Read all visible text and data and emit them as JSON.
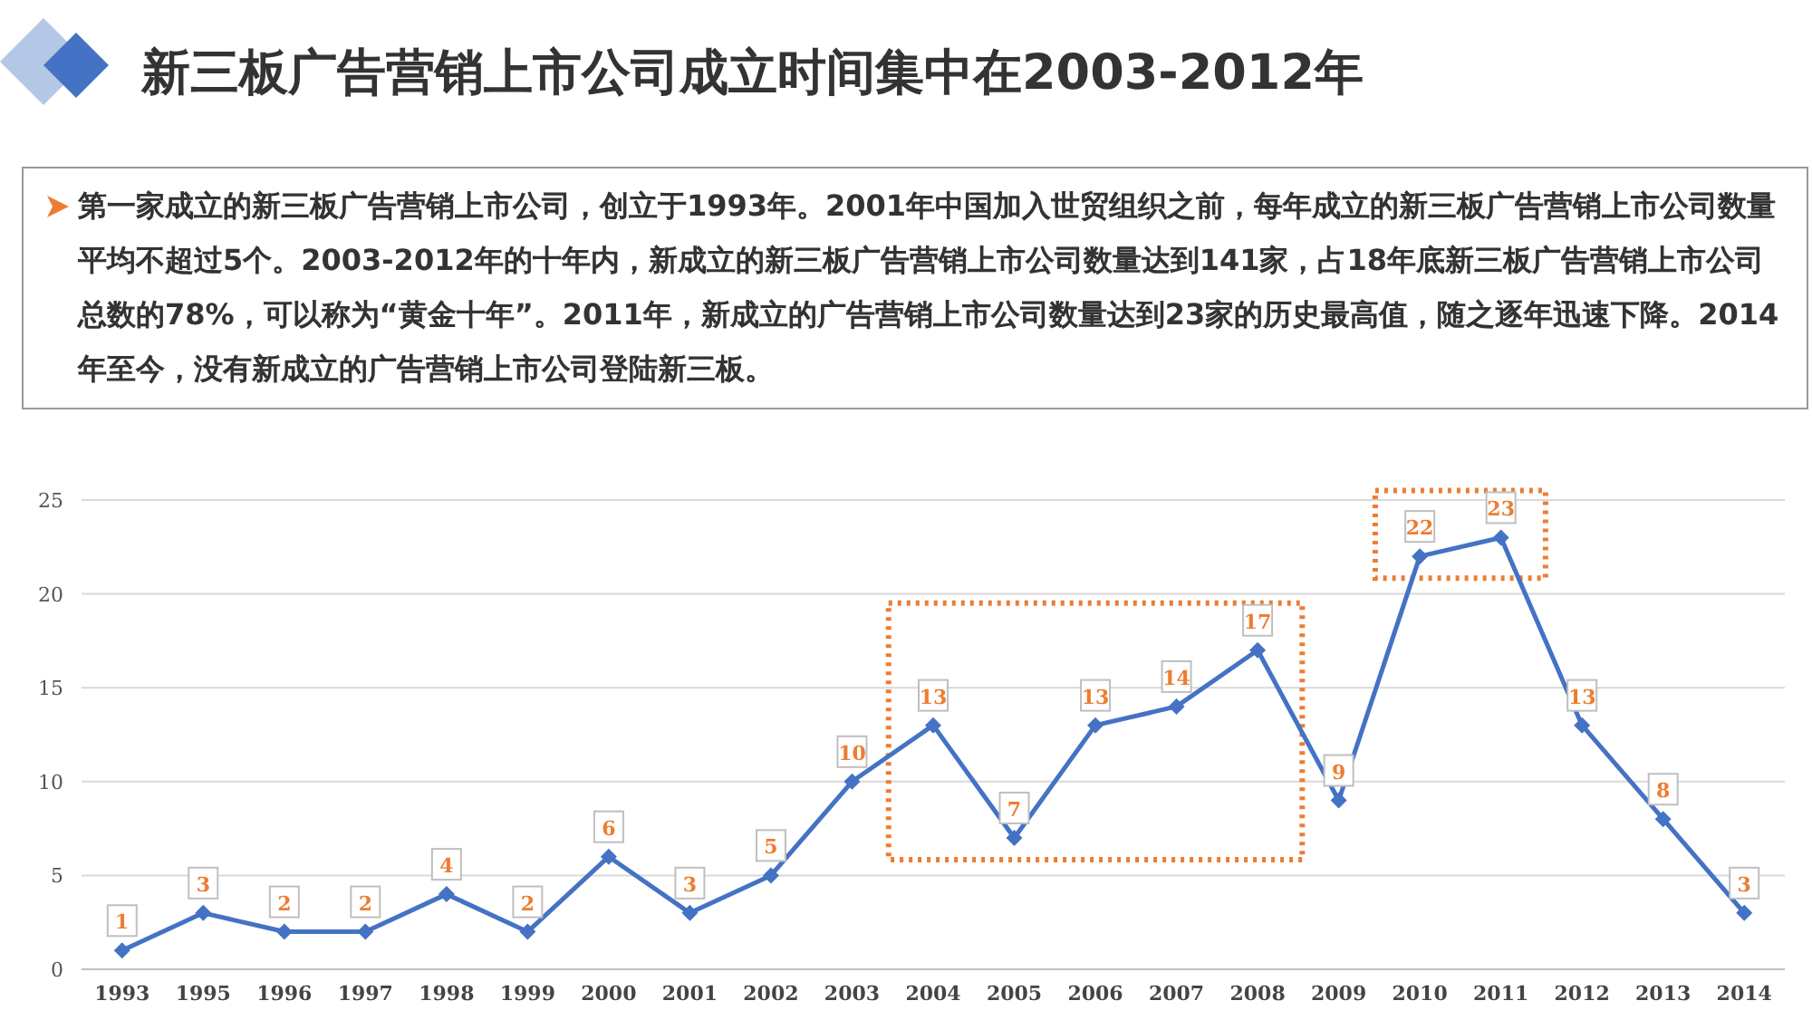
{
  "chart_data": {
    "type": "line",
    "title": "新三板广告营销上市公司成立时间集中在2003-2012年",
    "subtitle": "第一家成立的新三板广告营销上市公司，创立于1993年。2001年中国加入世贸组织之前，每年成立的新三板广告营销上市公司数量平均不超过5个。2003-2012年的十年内，新成立的新三板广告营销上市公司数量达到141家，占18年底新三板广告营销上市公司总数的78%，可以称为“黄金十年”。2011年，新成立的广告营销上市公司数量达到23家的历史最高值，随之逐年迅速下降。2014年至今，没有新成立的广告营销上市公司登陆新三板。",
    "categories": [
      "1993",
      "1995",
      "1996",
      "1997",
      "1998",
      "1999",
      "2000",
      "2001",
      "2002",
      "2003",
      "2004",
      "2005",
      "2006",
      "2007",
      "2008",
      "2009",
      "2010",
      "2011",
      "2012",
      "2013",
      "2014"
    ],
    "series": [
      {
        "color": "#4472c4",
        "values": [
          1,
          3,
          2,
          2,
          4,
          2,
          6,
          3,
          5,
          10,
          13,
          7,
          13,
          14,
          17,
          9,
          22,
          23,
          13,
          8,
          3
        ]
      }
    ],
    "ylim": [
      0,
      25
    ],
    "yticks": [
      0,
      5,
      10,
      15,
      20,
      25
    ],
    "grid": "y",
    "marker": "diamond",
    "data_labels": true
  }
}
